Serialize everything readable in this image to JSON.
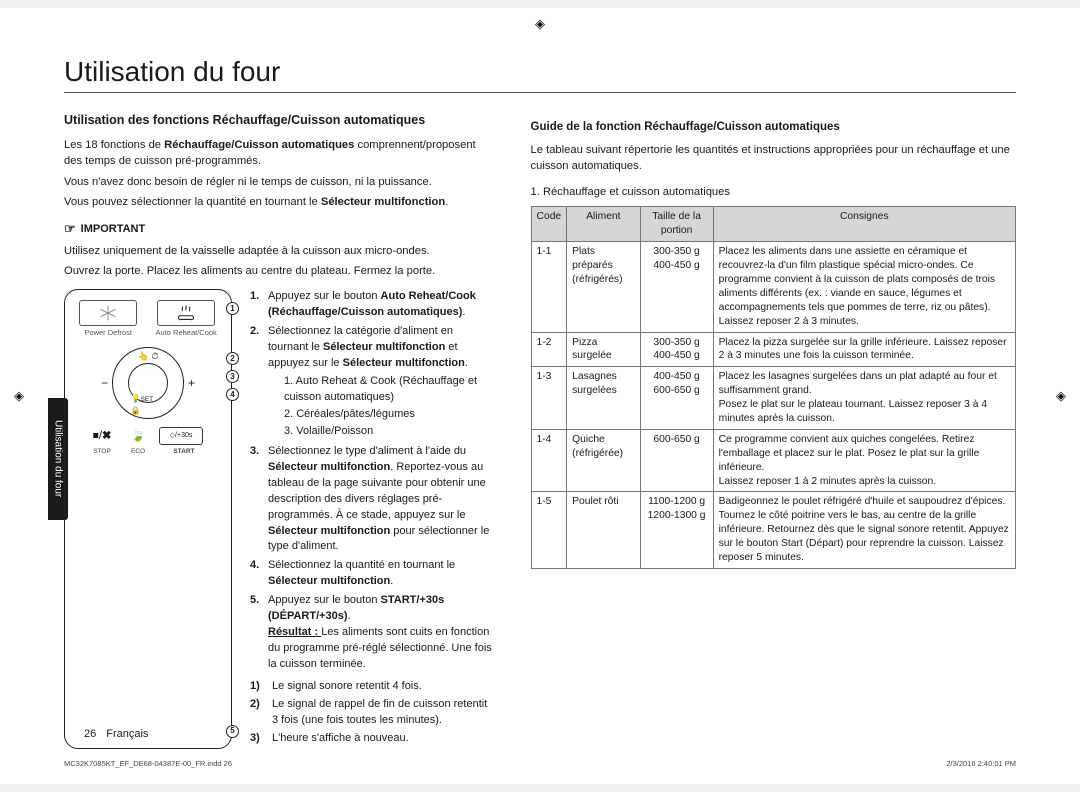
{
  "page": {
    "title": "Utilisation du four",
    "page_number": "26",
    "language": "Français",
    "section_tab": "Utilisation du four",
    "meta_file": "MC32K7085KT_EF_DE68-04387E-00_FR.indd   26",
    "meta_date": "2/3/2016   2:40:01 PM"
  },
  "left": {
    "heading": "Utilisation des fonctions Réchauffage/Cuisson automatiques",
    "p1a": "Les 18 fonctions de ",
    "p1b": "Réchauffage/Cuisson automatiques",
    "p1c": " comprennent/proposent des temps de cuisson pré-programmés.",
    "p2": "Vous n'avez donc besoin de régler ni le temps de cuisson, ni la puissance.",
    "p3a": "Vous pouvez sélectionner la quantité en tournant le ",
    "p3b": "Sélecteur multifonction",
    "p3c": ".",
    "important_label": "IMPORTANT",
    "important_p1": "Utilisez uniquement de la vaisselle adaptée à la cuisson aux micro-ondes.",
    "important_p2": "Ouvrez la porte. Placez les aliments au centre du plateau. Fermez la porte.",
    "panel": {
      "mode1": "Power Defrost",
      "mode2": "Auto Reheat/Cook",
      "dial_set": "SET",
      "stop": "STOP",
      "eco": "ECO",
      "start_plus": "+30s",
      "start": "START"
    },
    "steps": [
      {
        "n": "1.",
        "a": "Appuyez sur le bouton ",
        "b": "Auto Reheat/Cook (Réchauffage/Cuisson automatiques)",
        "c": "."
      },
      {
        "n": "2.",
        "a": "Sélectionnez la catégorie d'aliment en tournant le ",
        "b": "Sélecteur multifonction",
        "c": " et appuyez sur le ",
        "d": "Sélecteur multifonction",
        "e": ".",
        "sub": [
          "1. Auto Reheat & Cook (Réchauffage et cuisson automatiques)",
          "2. Céréales/pâtes/légumes",
          "3. Volaille/Poisson"
        ]
      },
      {
        "n": "3.",
        "a": "Sélectionnez le type d'aliment à l'aide du ",
        "b": "Sélecteur multifonction",
        "c": ". Reportez-vous au tableau de la page suivante pour obtenir une description des divers réglages pré-programmés. À ce stade, appuyez sur le ",
        "d": "Sélecteur multifonction",
        "e": " pour sélectionner le type d'aliment."
      },
      {
        "n": "4.",
        "a": "Sélectionnez la quantité en tournant le ",
        "b": "Sélecteur multifonction",
        "c": "."
      },
      {
        "n": "5.",
        "a": "Appuyez sur le bouton ",
        "b": "START/+30s (DÉPART/+30s)",
        "c": ".",
        "result_label": "Résultat : ",
        "result_text": "Les aliments sont cuits en fonction du programme pré-réglé sélectionné. Une fois la cuisson terminée."
      }
    ],
    "results": [
      {
        "n": "1)",
        "t": "Le signal sonore retentit 4 fois."
      },
      {
        "n": "2)",
        "t": "Le signal de rappel de fin de cuisson retentit 3 fois (une fois toutes les minutes)."
      },
      {
        "n": "3)",
        "t": "L'heure s'affiche à nouveau."
      }
    ]
  },
  "right": {
    "heading": "Guide de la fonction Réchauffage/Cuisson automatiques",
    "intro": "Le tableau suivant répertorie les quantités et instructions appropriées pour un réchauffage et une cuisson automatiques.",
    "table_title": "1. Réchauffage et cuisson automatiques",
    "headers": {
      "code": "Code",
      "food": "Aliment",
      "portion": "Taille de la portion",
      "instr": "Consignes"
    },
    "rows": [
      {
        "code": "1-1",
        "food": "Plats préparés (réfrigérés)",
        "portion": "300-350 g\n400-450 g",
        "instr": "Placez les aliments dans une assiette en céramique et recouvrez-la d'un film plastique spécial micro-ondes. Ce programme convient à la cuisson de plats composés de trois aliments différents (ex. : viande en sauce, légumes et accompagnements tels que pommes de terre, riz ou pâtes).\nLaissez reposer 2 à 3 minutes."
      },
      {
        "code": "1-2",
        "food": "Pizza surgelée",
        "portion": "300-350 g\n400-450 g",
        "instr": "Placez la pizza surgelée sur la grille inférieure. Laissez reposer 2 à 3 minutes une fois la cuisson terminée."
      },
      {
        "code": "1-3",
        "food": "Lasagnes surgelées",
        "portion": "400-450 g\n600-650 g",
        "instr": "Placez les lasagnes surgelées dans un plat adapté au four et suffisamment grand.\nPosez le plat sur le plateau tournant. Laissez reposer 3 à 4 minutes après la cuisson."
      },
      {
        "code": "1-4",
        "food": "Quiche (réfrigérée)",
        "portion": "600-650 g",
        "instr": "Ce programme convient aux quiches congelées. Retirez l'emballage et placez sur le plat. Posez le plat sur la grille inférieure.\nLaissez reposer 1 à 2 minutes après la cuisson."
      },
      {
        "code": "1-5",
        "food": "Poulet rôti",
        "portion": "1100-1200 g\n1200-1300 g",
        "instr": "Badigeonnez le poulet réfrigéré d'huile et saupoudrez d'épices. Tournez le côté poitrine vers le bas, au centre de la grille inférieure. Retournez dès que le signal sonore retentit. Appuyez sur le bouton Start (Départ) pour reprendre la cuisson. Laissez reposer 5 minutes."
      }
    ]
  }
}
